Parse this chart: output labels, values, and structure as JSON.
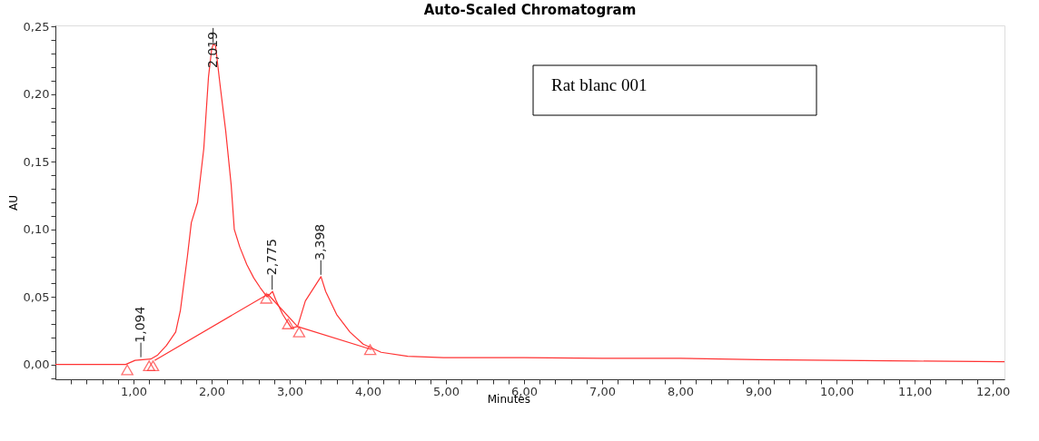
{
  "chart_data": {
    "type": "line",
    "title": "Auto-Scaled Chromatogram",
    "xlabel": "Minutes",
    "ylabel": "AU",
    "xlim": [
      0,
      12.15
    ],
    "ylim": [
      -0.011,
      0.251
    ],
    "xticks": [
      {
        "value": 0.2,
        "label": null
      },
      {
        "value": 0.4,
        "label": null
      },
      {
        "value": 0.6,
        "label": null
      },
      {
        "value": 0.8,
        "label": null
      },
      {
        "value": 1,
        "label": "1,00"
      },
      {
        "value": 1.2,
        "label": null
      },
      {
        "value": 1.4,
        "label": null
      },
      {
        "value": 1.6,
        "label": null
      },
      {
        "value": 1.8,
        "label": null
      },
      {
        "value": 2,
        "label": "2,00"
      },
      {
        "value": 2.2,
        "label": null
      },
      {
        "value": 2.4,
        "label": null
      },
      {
        "value": 2.6,
        "label": null
      },
      {
        "value": 2.8,
        "label": null
      },
      {
        "value": 3,
        "label": "3,00"
      },
      {
        "value": 3.2,
        "label": null
      },
      {
        "value": 3.4,
        "label": null
      },
      {
        "value": 3.6,
        "label": null
      },
      {
        "value": 3.8,
        "label": null
      },
      {
        "value": 4,
        "label": "4,00"
      },
      {
        "value": 4.2,
        "label": null
      },
      {
        "value": 4.4,
        "label": null
      },
      {
        "value": 4.6,
        "label": null
      },
      {
        "value": 4.8,
        "label": null
      },
      {
        "value": 5,
        "label": "5,00"
      },
      {
        "value": 5.2,
        "label": null
      },
      {
        "value": 5.4,
        "label": null
      },
      {
        "value": 5.6,
        "label": null
      },
      {
        "value": 5.8,
        "label": null
      },
      {
        "value": 6,
        "label": "6,00"
      },
      {
        "value": 6.2,
        "label": null
      },
      {
        "value": 6.4,
        "label": null
      },
      {
        "value": 6.6,
        "label": null
      },
      {
        "value": 6.8,
        "label": null
      },
      {
        "value": 7,
        "label": "7,00"
      },
      {
        "value": 7.2,
        "label": null
      },
      {
        "value": 7.4,
        "label": null
      },
      {
        "value": 7.6,
        "label": null
      },
      {
        "value": 7.8,
        "label": null
      },
      {
        "value": 8,
        "label": "8,00"
      },
      {
        "value": 8.2,
        "label": null
      },
      {
        "value": 8.4,
        "label": null
      },
      {
        "value": 8.6,
        "label": null
      },
      {
        "value": 8.8,
        "label": null
      },
      {
        "value": 9,
        "label": "9,00"
      },
      {
        "value": 9.2,
        "label": null
      },
      {
        "value": 9.4,
        "label": null
      },
      {
        "value": 9.6,
        "label": null
      },
      {
        "value": 9.8,
        "label": null
      },
      {
        "value": 10,
        "label": "10,00"
      },
      {
        "value": 10.2,
        "label": null
      },
      {
        "value": 10.4,
        "label": null
      },
      {
        "value": 10.6,
        "label": null
      },
      {
        "value": 10.8,
        "label": null
      },
      {
        "value": 11,
        "label": "11,00"
      },
      {
        "value": 11.2,
        "label": null
      },
      {
        "value": 11.4,
        "label": null
      },
      {
        "value": 11.6,
        "label": null
      },
      {
        "value": 11.8,
        "label": null
      },
      {
        "value": 12,
        "label": "12,00"
      }
    ],
    "yticks": [
      {
        "value": -0.01,
        "label": null
      },
      {
        "value": 0,
        "label": "0,00"
      },
      {
        "value": 0.01,
        "label": null
      },
      {
        "value": 0.02,
        "label": null
      },
      {
        "value": 0.03,
        "label": null
      },
      {
        "value": 0.04,
        "label": null
      },
      {
        "value": 0.05,
        "label": "0,05"
      },
      {
        "value": 0.06,
        "label": null
      },
      {
        "value": 0.07,
        "label": null
      },
      {
        "value": 0.08,
        "label": null
      },
      {
        "value": 0.09,
        "label": null
      },
      {
        "value": 0.1,
        "label": "0,10"
      },
      {
        "value": 0.11,
        "label": null
      },
      {
        "value": 0.12,
        "label": null
      },
      {
        "value": 0.13,
        "label": null
      },
      {
        "value": 0.14,
        "label": null
      },
      {
        "value": 0.15,
        "label": "0,15"
      },
      {
        "value": 0.16,
        "label": null
      },
      {
        "value": 0.17,
        "label": null
      },
      {
        "value": 0.18,
        "label": null
      },
      {
        "value": 0.19,
        "label": null
      },
      {
        "value": 0.2,
        "label": "0,20"
      },
      {
        "value": 0.21,
        "label": null
      },
      {
        "value": 0.22,
        "label": null
      },
      {
        "value": 0.23,
        "label": null
      },
      {
        "value": 0.24,
        "label": null
      },
      {
        "value": 0.25,
        "label": "0,25"
      }
    ],
    "grid": false,
    "legend": false,
    "series": [
      {
        "color": "#ff3333",
        "marker": "none",
        "x": [
          0,
          0.9,
          1.02,
          1.22,
          1.31,
          1.42,
          1.54,
          1.6,
          1.69,
          1.74,
          1.82,
          1.9,
          1.96,
          2.0,
          2.02,
          2.05,
          2.11,
          2.18,
          2.25,
          2.29,
          2.36,
          2.45,
          2.54,
          2.62,
          2.71,
          2.78,
          2.82,
          2.91,
          3.02,
          3.1,
          3.2,
          3.4,
          3.46,
          3.6,
          3.77,
          3.94,
          4.17,
          4.51,
          4.97,
          6.0,
          7.0,
          8.0,
          8.5,
          9.0,
          10.0,
          11.0,
          12.15
        ],
        "values": [
          0,
          0,
          0.003,
          0.004,
          0.007,
          0.014,
          0.024,
          0.04,
          0.08,
          0.105,
          0.12,
          0.16,
          0.213,
          0.233,
          0.237,
          0.236,
          0.206,
          0.173,
          0.133,
          0.1,
          0.087,
          0.074,
          0.064,
          0.057,
          0.05,
          0.054,
          0.048,
          0.037,
          0.027,
          0.028,
          0.047,
          0.065,
          0.054,
          0.037,
          0.024,
          0.015,
          0.009,
          0.006,
          0.005,
          0.005,
          0.0045,
          0.0045,
          0.004,
          0.0035,
          0.003,
          0.0025,
          0.002
        ]
      },
      {
        "color": "#ff3333",
        "marker": "none",
        "x": [
          1.27,
          2.72,
          3.1,
          4.05
        ],
        "values": [
          0.003,
          0.052,
          0.028,
          0.011
        ]
      },
      {
        "type": "scatter",
        "color": "#ff3333",
        "marker": "triangle",
        "x": [
          0.92,
          1.2,
          1.25,
          2.7,
          2.98,
          3.12,
          4.03
        ],
        "values": [
          -0.004,
          -0.001,
          -0.001,
          0.049,
          0.03,
          0.024,
          0.011
        ]
      }
    ],
    "annotations": [
      {
        "text": "1,094",
        "x": 1.094,
        "y": 0.004
      },
      {
        "text": "2,019",
        "x": 2.019,
        "y": 0.237
      },
      {
        "text": "2,775",
        "x": 2.775,
        "y": 0.054
      },
      {
        "text": "3,398",
        "x": 3.398,
        "y": 0.065
      },
      "Rat blanc 001"
    ]
  }
}
